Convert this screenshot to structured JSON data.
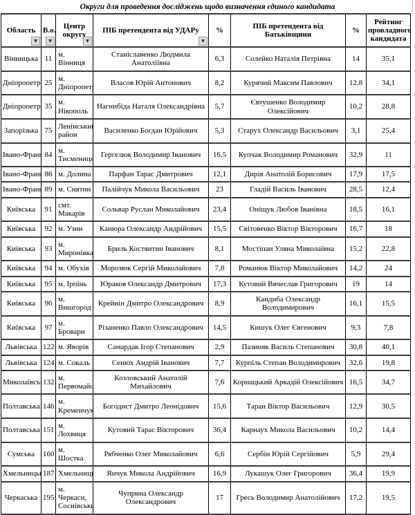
{
  "title": "Округи для проведення досліджень щодо визначення єдиного кандидата",
  "colors": {
    "grid_vertical": "#000000",
    "grid_horizontal": "#3b3b3b",
    "filter_button_bg": "#dedbd4"
  },
  "icons": {
    "filter_arrow": "▼"
  },
  "table": {
    "columns": [
      {
        "label": "Область",
        "filter": true
      },
      {
        "label": "В.о.",
        "filter": true
      },
      {
        "label": "Центр округу",
        "filter": true
      },
      {
        "label": "ПІБ претендента від УДАРу",
        "filter": true
      },
      {
        "label": "%",
        "filter": false
      },
      {
        "label": "ПІБ претендента від Батьківщини",
        "filter": false
      },
      {
        "label": "%",
        "filter": false
      },
      {
        "label": "Рейтинг провладного кандидата",
        "filter": false
      }
    ],
    "rows": [
      [
        "Вінницька",
        "11",
        "м. Вінниця",
        "Станіславенко Людмила Анатоліївна",
        "6,3",
        "Солейко Наталія Петрівна",
        "14",
        "35,1"
      ],
      [
        "Дніпропетровська",
        "25",
        "м. Дніпропетров",
        "Власов Юрій Антонович",
        "8,2",
        "Курячий Максим Павлович",
        "12,8",
        "34,1"
      ],
      [
        "Дніпропетровська",
        "35",
        "м. Нікополь",
        "Нагнибіда Наталя Олександрівна",
        "5,7",
        "Євтушенко Володимир Олексійович",
        "10,2",
        "28,8"
      ],
      [
        "Запорізька",
        "75",
        "Ленінський район",
        "Василенко Богдан Юрійович",
        "5,3",
        "Старух Олександр Васильович",
        "3,1",
        "25,4"
      ],
      [
        "Івано-Франківська",
        "84",
        "м. Тисмениця",
        "Гергелюк Володимир Іванович",
        "16,5",
        "Купчак Володимир Романович",
        "32,9",
        "11"
      ],
      [
        "Івано-Франківська",
        "86",
        "м. Долина",
        "Парфан Тарас Дмитрович",
        "12,1",
        "Дирів Анатолій Борисович",
        "17,9",
        "17,5"
      ],
      [
        "Івано-Франківська",
        "89",
        "м. Снятин",
        "Палійчук Микола Васильович",
        "23",
        "Гладій Василь Іванович",
        "28,5",
        "12,4"
      ],
      [
        "Київська",
        "91",
        "смт. Макарів",
        "Сольвар Руслан Миколайович",
        "23,4",
        "Оніщук Любов Іванівна",
        "18,5",
        "16,1"
      ],
      [
        "Київська",
        "92",
        "м. Узин",
        "Канюра Олександр  Андрійович",
        "15,5",
        "Світовенко Віктор Вікторович",
        "16,7",
        "18"
      ],
      [
        "Київська",
        "93",
        "м. Миронівка",
        "Бриль Костянтин Іванович",
        "8,1",
        "Мостіпан Уляна Миколаївна",
        "15,2",
        "22,8"
      ],
      [
        "Київська",
        "94",
        "м. Обухів",
        "Морозюк Сергій Миколайович",
        "7,8",
        "Романюк Віктор Миколайович",
        "14,2",
        "24"
      ],
      [
        "Київська",
        "95",
        "м. Ірпінь",
        "Юраков Олександр Дмитрович",
        "17,3",
        "Кутовий Вячеслав Григорович",
        "19",
        "14"
      ],
      [
        "Київська",
        "96",
        "м. Вишгород",
        "Крейнін Дмитро Олександрович",
        "8,9",
        "Кандиба Олександр Володимирович",
        "16,1",
        "15,5"
      ],
      [
        "Київська",
        "97",
        "м. Бровари",
        "Різаненко Павло Олександрович",
        "14,5",
        "Кишук Олег Євгенович",
        "9,3",
        "7,8"
      ],
      [
        "Львівська",
        "122",
        "м. Яворів",
        "Самардак Ігор Степанович",
        "2,9",
        "Пазиняк Василь Степанович",
        "30,8",
        "40,1"
      ],
      [
        "Львівська",
        "124",
        "м. Сокаль",
        "Сенюх Андрій Іванович",
        "7,7",
        "Курпіль Степан Володимирович",
        "32,6",
        "19,8"
      ],
      [
        "Миколаївська",
        "132",
        "м. Первомайськ",
        "Козловський Анатолій Михайлович",
        "7,6",
        "Корнацький Аркадій Олексійович",
        "16,5",
        "34,7"
      ],
      [
        "Полтавська",
        "146",
        "м. Кременчук",
        "Богодист Дмитро Леонідович",
        "15,6",
        "Таран Віктор Васильович",
        "12,9",
        "30,5"
      ],
      [
        "Полтавська",
        "151",
        "м. Лохвиця",
        "Кутовий Тарас Вікторович",
        "36,4",
        "Карнаух Микола Васильович",
        "10,2",
        "14,4"
      ],
      [
        "Сумська",
        "160",
        "м. Шостка",
        "Рябченко  Олег Миколайович",
        "6,6",
        "Сербін Юрій Сергійович",
        "5,9",
        "29,4"
      ],
      [
        "Хмельницька",
        "187",
        "Хмельницький",
        "Янчук Микола Андрійович",
        "16,9",
        "Лукашук Олег Григорович",
        "36,4",
        "19,9"
      ],
      [
        "Черкаська",
        "195",
        "м. Черкаси, Соснівський",
        "Чуприна Олександр Олександрович",
        "17",
        "Гресь Володимир Анатолійович",
        "17,2",
        "19,5"
      ]
    ]
  }
}
